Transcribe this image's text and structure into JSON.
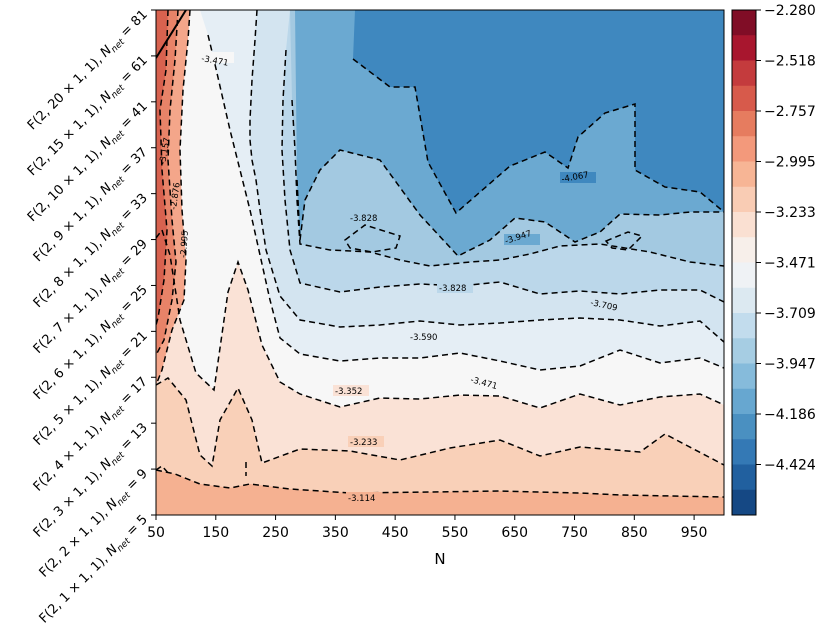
{
  "chart_data": {
    "type": "heatmap",
    "subtype": "filled-contour",
    "xlabel": "N",
    "x_ticks": [
      "50",
      "150",
      "250",
      "350",
      "450",
      "550",
      "650",
      "750",
      "850",
      "950"
    ],
    "x_values": [
      50,
      150,
      250,
      350,
      450,
      550,
      650,
      750,
      850,
      950
    ],
    "xlim": [
      50,
      1000
    ],
    "y_ticks": [
      "F(2, 1 × 1, 1), N_net = 5",
      "F(2, 2 × 1, 1), N_net = 9",
      "F(2, 3 × 1, 1), N_net = 13",
      "F(2, 4 × 1, 1), N_net = 17",
      "F(2, 5 × 1, 1), N_net = 21",
      "F(2, 6 × 1, 1), N_net = 25",
      "F(2, 7 × 1, 1), N_net = 29",
      "F(2, 8 × 1, 1), N_net = 33",
      "F(2, 9 × 1, 1), N_net = 37",
      "F(2, 10 × 1, 1), N_net = 41",
      "F(2, 15 × 1, 1), N_net = 61",
      "F(2, 20 × 1, 1), N_net = 81"
    ],
    "y_tick_parts": [
      {
        "f": "F(2, 1 × 1, 1), ",
        "n": "5"
      },
      {
        "f": "F(2, 2 × 1, 1), ",
        "n": "9"
      },
      {
        "f": "F(2, 3 × 1, 1), ",
        "n": "13"
      },
      {
        "f": "F(2, 4 × 1, 1), ",
        "n": "17"
      },
      {
        "f": "F(2, 5 × 1, 1), ",
        "n": "21"
      },
      {
        "f": "F(2, 6 × 1, 1), ",
        "n": "25"
      },
      {
        "f": "F(2, 7 × 1, 1), ",
        "n": "29"
      },
      {
        "f": "F(2, 8 × 1, 1), ",
        "n": "33"
      },
      {
        "f": "F(2, 9 × 1, 1), ",
        "n": "37"
      },
      {
        "f": "F(2, 10 × 1, 1), ",
        "n": "41"
      },
      {
        "f": "F(2, 15 × 1, 1), ",
        "n": "61"
      },
      {
        "f": "F(2, 20 × 1, 1), ",
        "n": "81"
      }
    ],
    "colorbar": {
      "colormap": "RdBu",
      "tick_labels": [
        "-2.280",
        "-2.518",
        "-2.757",
        "-2.995",
        "-3.233",
        "-3.471",
        "-3.709",
        "-3.947",
        "-4.186",
        "-4.424"
      ],
      "levels_top_to_bottom": [
        -2.28,
        -2.399,
        -2.518,
        -2.638,
        -2.757,
        -2.876,
        -2.995,
        -3.114,
        -3.233,
        -3.352,
        -3.471,
        -3.59,
        -3.709,
        -3.828,
        -3.947,
        -4.067,
        -4.186,
        -4.305,
        -4.424,
        -4.543
      ],
      "band_colors_top_to_bottom": [
        "#800d26",
        "#a8162e",
        "#c43b3d",
        "#d75a4b",
        "#e67c5f",
        "#f3997b",
        "#f7b595",
        "#f9ccb4",
        "#fae0d2",
        "#f7efea",
        "#eff2f5",
        "#dce9f1",
        "#c2dced",
        "#a6cde3",
        "#86bbdb",
        "#67a7d0",
        "#4a90c1",
        "#3479b5",
        "#21609f",
        "#154884"
      ]
    },
    "contour_labels": [
      "-3.471",
      "-3.828",
      "-4.067",
      "-3.947",
      "-3.828",
      "-3.709",
      "-3.590",
      "-3.471",
      "-3.352",
      "-3.233",
      "-3.114",
      "-3.157",
      "-2.876",
      "-2.995"
    ],
    "grid": false
  }
}
